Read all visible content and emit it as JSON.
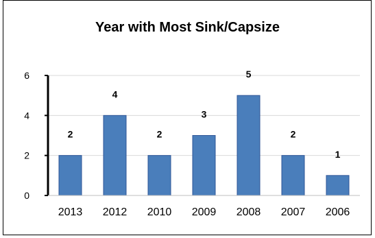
{
  "chart_data": {
    "type": "bar",
    "title": "Year with Most Sink/Capsize",
    "xlabel": "",
    "ylabel": "",
    "categories": [
      "2013",
      "2012",
      "2010",
      "2009",
      "2008",
      "2007",
      "2006"
    ],
    "values": [
      2,
      4,
      2,
      3,
      5,
      2,
      1
    ],
    "data_labels": [
      "2",
      "4",
      "2",
      "3",
      "5",
      "2",
      "1"
    ],
    "ylim": [
      0,
      6
    ],
    "yticks": [
      0,
      2,
      4,
      6
    ],
    "ytick_labels": [
      "0",
      "2",
      "4",
      "6"
    ],
    "grid": true,
    "legend": "none",
    "bar_color": "#4a7ebb",
    "bar_edge_color": "#2f5597"
  }
}
